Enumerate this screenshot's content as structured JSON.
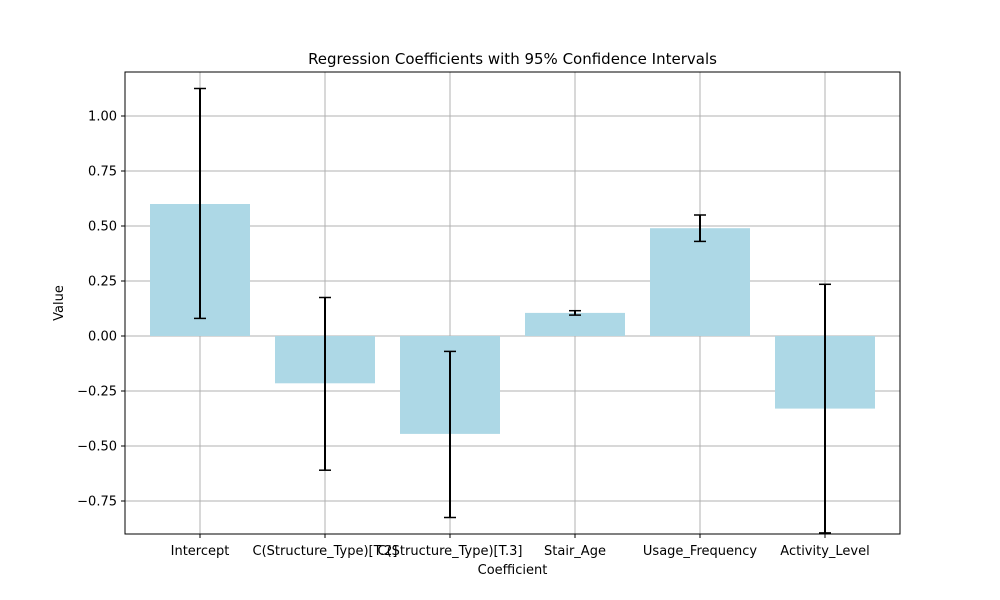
{
  "chart_data": {
    "type": "bar",
    "title": "Regression Coefficients with 95% Confidence Intervals",
    "xlabel": "Coefficient",
    "ylabel": "Value",
    "categories": [
      "Intercept",
      "C(Structure_Type)[T.2]",
      "C(Structure_Type)[T.3]",
      "Stair_Age",
      "Usage_Frequency",
      "Activity_Level"
    ],
    "values": [
      0.6,
      -0.215,
      -0.445,
      0.105,
      0.49,
      -0.33
    ],
    "ci_lower": [
      0.08,
      -0.61,
      -0.825,
      0.095,
      0.43,
      -0.895
    ],
    "ci_upper": [
      1.125,
      0.175,
      -0.07,
      0.115,
      0.55,
      0.235
    ],
    "ylim": [
      -0.9,
      1.2
    ],
    "yticks": [
      -0.75,
      -0.5,
      -0.25,
      0.0,
      0.25,
      0.5,
      0.75,
      1.0
    ],
    "ytick_labels": [
      "−0.75",
      "−0.50",
      "−0.25",
      "0.00",
      "0.25",
      "0.50",
      "0.75",
      "1.00"
    ],
    "grid": true,
    "bar_color": "#add8e6",
    "errorbar_color": "#000000",
    "grid_color": "#b0b0b0"
  }
}
